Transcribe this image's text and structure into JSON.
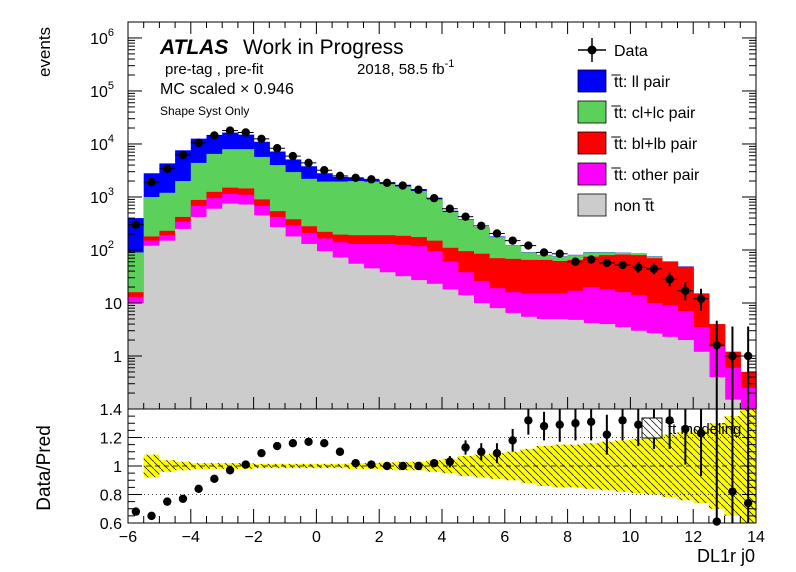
{
  "chart_data": {
    "type": "histogram",
    "upper": {
      "ylabel": "events",
      "yscale": "log",
      "ylim": [
        0.1,
        2000000
      ],
      "ytick_labels": [
        "10^{6}",
        "10^{5}",
        "10^{4}",
        "10^{3}",
        "10^{2}",
        "10",
        "1"
      ],
      "xlim": [
        -6,
        14
      ],
      "grid": false,
      "legend_position": "top-right"
    },
    "lower": {
      "ylabel": "Data/Pred",
      "ylim": [
        0.6,
        1.4
      ],
      "yticks": [
        "0.6",
        "0.8",
        "1",
        "1.2",
        "1.4"
      ],
      "xlabel": "DL1r j0",
      "xticks": [
        "−6",
        "−4",
        "−2",
        "0",
        "2",
        "4",
        "6",
        "8",
        "10",
        "12",
        "14"
      ],
      "band_legend": "t̅t modeling"
    },
    "annotations": {
      "atlas": "ATLAS",
      "status": "Work in Progress",
      "selection": "pre-tag ,  pre-fit",
      "lumi": "2018, 58.5 fb",
      "lumi_sup": "-1",
      "scale": "MC scaled × 0.946",
      "syst": "Shape Syst Only"
    },
    "legend": [
      {
        "label": "Data",
        "type": "marker",
        "color": "#000000"
      },
      {
        "label": "t̅t: ll pair",
        "type": "box",
        "color": "#0000ff"
      },
      {
        "label": "t̅t: cl+lc pair",
        "type": "box",
        "color": "#5bd15b"
      },
      {
        "label": "t̅t: bl+lb pair",
        "type": "box",
        "color": "#ff0000"
      },
      {
        "label": "t̅t: other pair",
        "type": "box",
        "color": "#ff00ff"
      },
      {
        "label": "non t̅t",
        "type": "box",
        "color": "#cccccc"
      }
    ],
    "x_edges": [
      -6,
      -5.5,
      -5,
      -4.5,
      -4,
      -3.5,
      -3,
      -2.5,
      -2,
      -1.5,
      -1,
      -0.5,
      0,
      0.5,
      1,
      1.5,
      2,
      2.5,
      3,
      3.5,
      4,
      4.5,
      5,
      5.5,
      6,
      6.5,
      7,
      7.5,
      8,
      8.5,
      9,
      9.5,
      10,
      10.5,
      11,
      11.5,
      12,
      12.5,
      13,
      13.5,
      14
    ],
    "stack_order": [
      "non t̅t",
      "t̅t: other pair",
      "t̅t: bl+lb pair",
      "t̅t: cl+lc pair",
      "t̅t: ll pair"
    ],
    "stack_cumulative_top": {
      "non t̅t": [
        10,
        120,
        150,
        250,
        420,
        600,
        750,
        720,
        450,
        270,
        180,
        130,
        95,
        72,
        55,
        45,
        38,
        32,
        27,
        23,
        18,
        14,
        10,
        8,
        6.5,
        5.5,
        5,
        5,
        4.8,
        4.2,
        4,
        3.5,
        3,
        2.7,
        2.3,
        2,
        1.2,
        0.4,
        0.15,
        0.1
      ],
      "t̅t: other pair": [
        13,
        150,
        190,
        340,
        680,
        950,
        1150,
        1100,
        680,
        420,
        290,
        210,
        165,
        140,
        130,
        130,
        130,
        125,
        118,
        95,
        60,
        38,
        26,
        19,
        16,
        15,
        15,
        15,
        17,
        20,
        18,
        16,
        14,
        10,
        9,
        7,
        3.5,
        1.5,
        0.6,
        0.25
      ],
      "t̅t: bl+lb pair": [
        16,
        180,
        230,
        420,
        880,
        1250,
        1500,
        1450,
        900,
        540,
        380,
        280,
        220,
        195,
        190,
        190,
        190,
        185,
        175,
        150,
        110,
        95,
        85,
        70,
        68,
        65,
        65,
        62,
        65,
        75,
        80,
        82,
        80,
        70,
        60,
        48,
        15,
        4,
        1.2,
        0.5
      ],
      "t̅t: cl+lc pair": [
        90,
        1000,
        1200,
        2000,
        4400,
        6500,
        8000,
        8000,
        5700,
        4000,
        2950,
        2200,
        1950,
        1950,
        2000,
        1950,
        1750,
        1580,
        1300,
        900,
        520,
        370,
        260,
        175,
        120,
        90,
        80,
        75,
        80,
        90,
        90,
        88,
        85,
        75,
        60,
        48,
        15,
        4,
        1.2,
        0.5
      ],
      "t̅t: ll pair": [
        400,
        2800,
        4300,
        7600,
        12600,
        14300,
        16400,
        15000,
        11000,
        7200,
        5100,
        3800,
        2800,
        2400,
        2300,
        2100,
        1900,
        1700,
        1400,
        950,
        550,
        380,
        265,
        180,
        122,
        91,
        81,
        76,
        81,
        91,
        91,
        89,
        86,
        76,
        61,
        49,
        15.2,
        4,
        1.2,
        0.5
      ]
    },
    "data": {
      "x": [
        -5.75,
        -5.25,
        -4.75,
        -4.25,
        -3.75,
        -3.25,
        -2.75,
        -2.25,
        -1.75,
        -1.25,
        -0.75,
        -0.25,
        0.25,
        0.75,
        1.25,
        1.75,
        2.25,
        2.75,
        3.25,
        3.75,
        4.25,
        4.75,
        5.25,
        5.75,
        6.25,
        6.75,
        7.25,
        7.75,
        8.25,
        8.75,
        9.25,
        9.75,
        10.25,
        10.75,
        11.25,
        11.75,
        12.25,
        12.75,
        13.25,
        13.75
      ],
      "y": [
        300,
        1900,
        3400,
        6200,
        10500,
        14500,
        17900,
        16500,
        12500,
        8300,
        5900,
        4400,
        3200,
        2500,
        2300,
        2150,
        1850,
        1640,
        1370,
        950,
        600,
        425,
        285,
        205,
        150,
        121,
        90,
        85,
        60,
        66,
        57,
        52,
        47,
        44,
        28,
        17,
        12,
        1.6,
        1,
        1
      ],
      "ratio": [
        0.68,
        0.65,
        0.75,
        0.77,
        0.84,
        0.91,
        0.97,
        1.01,
        1.09,
        1.14,
        1.16,
        1.17,
        1.16,
        1.1,
        1.02,
        1.01,
        1.0,
        1.0,
        1.0,
        1.02,
        1.03,
        1.13,
        1.1,
        1.09,
        1.18,
        1.32,
        1.28,
        1.29,
        1.3,
        1.31,
        1.22,
        1.32,
        1.29,
        1.28,
        1.32,
        1.26,
        1.23,
        0.61,
        0.82,
        0.74
      ],
      "ratio_err": [
        0.02,
        0.02,
        0.02,
        0.02,
        0.02,
        0.02,
        0.02,
        0.02,
        0.02,
        0.02,
        0.02,
        0.02,
        0.02,
        0.02,
        0.02,
        0.02,
        0.02,
        0.02,
        0.02,
        0.03,
        0.04,
        0.05,
        0.06,
        0.07,
        0.08,
        0.1,
        0.1,
        0.12,
        0.12,
        0.13,
        0.14,
        0.14,
        0.15,
        0.16,
        0.2,
        0.25,
        0.3,
        0.8,
        1.0,
        1.0
      ]
    },
    "band_halfwidth": [
      0.0,
      0.08,
      0.04,
      0.03,
      0.02,
      0.02,
      0.02,
      0.02,
      0.015,
      0.015,
      0.015,
      0.015,
      0.015,
      0.015,
      0.02,
      0.02,
      0.025,
      0.03,
      0.03,
      0.04,
      0.05,
      0.07,
      0.08,
      0.09,
      0.1,
      0.12,
      0.14,
      0.15,
      0.15,
      0.16,
      0.17,
      0.18,
      0.19,
      0.2,
      0.22,
      0.24,
      0.26,
      0.3,
      0.35,
      0.4
    ]
  }
}
